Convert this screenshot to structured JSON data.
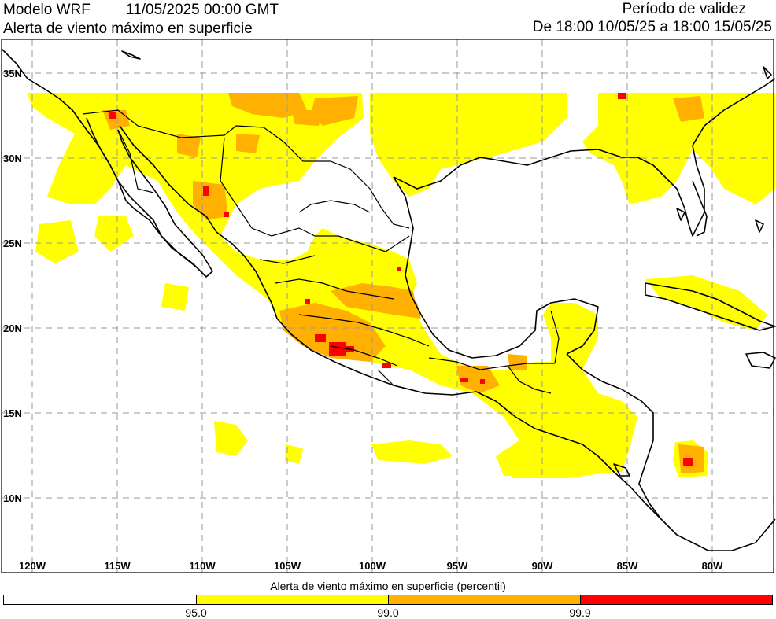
{
  "header": {
    "model": "Modelo WRF",
    "date": "11/05/2025 00:00 GMT",
    "title": "Alerta de viento máximo en superficie",
    "validity_label": "Período de validez",
    "validity_range": "De 18:00 10/05/25 a 18:00 15/05/25"
  },
  "lat_labels": [
    "35N",
    "30N",
    "25N",
    "20N",
    "15N",
    "10N"
  ],
  "lon_labels": [
    "120W",
    "115W",
    "110W",
    "105W",
    "100W",
    "95W",
    "90W",
    "85W",
    "80W"
  ],
  "colorbar": {
    "title": "Alerta de viento máximo en superficie (percentil)",
    "ticks": [
      "95.0",
      "99.0",
      "99.9"
    ],
    "colors": [
      "#ffffff",
      "#ffff00",
      "#ffb000",
      "#ff0000"
    ]
  },
  "colors": {
    "low": "#ffff00",
    "mid": "#ffb000",
    "high": "#ff0000",
    "grid": "#9a9a9a"
  }
}
